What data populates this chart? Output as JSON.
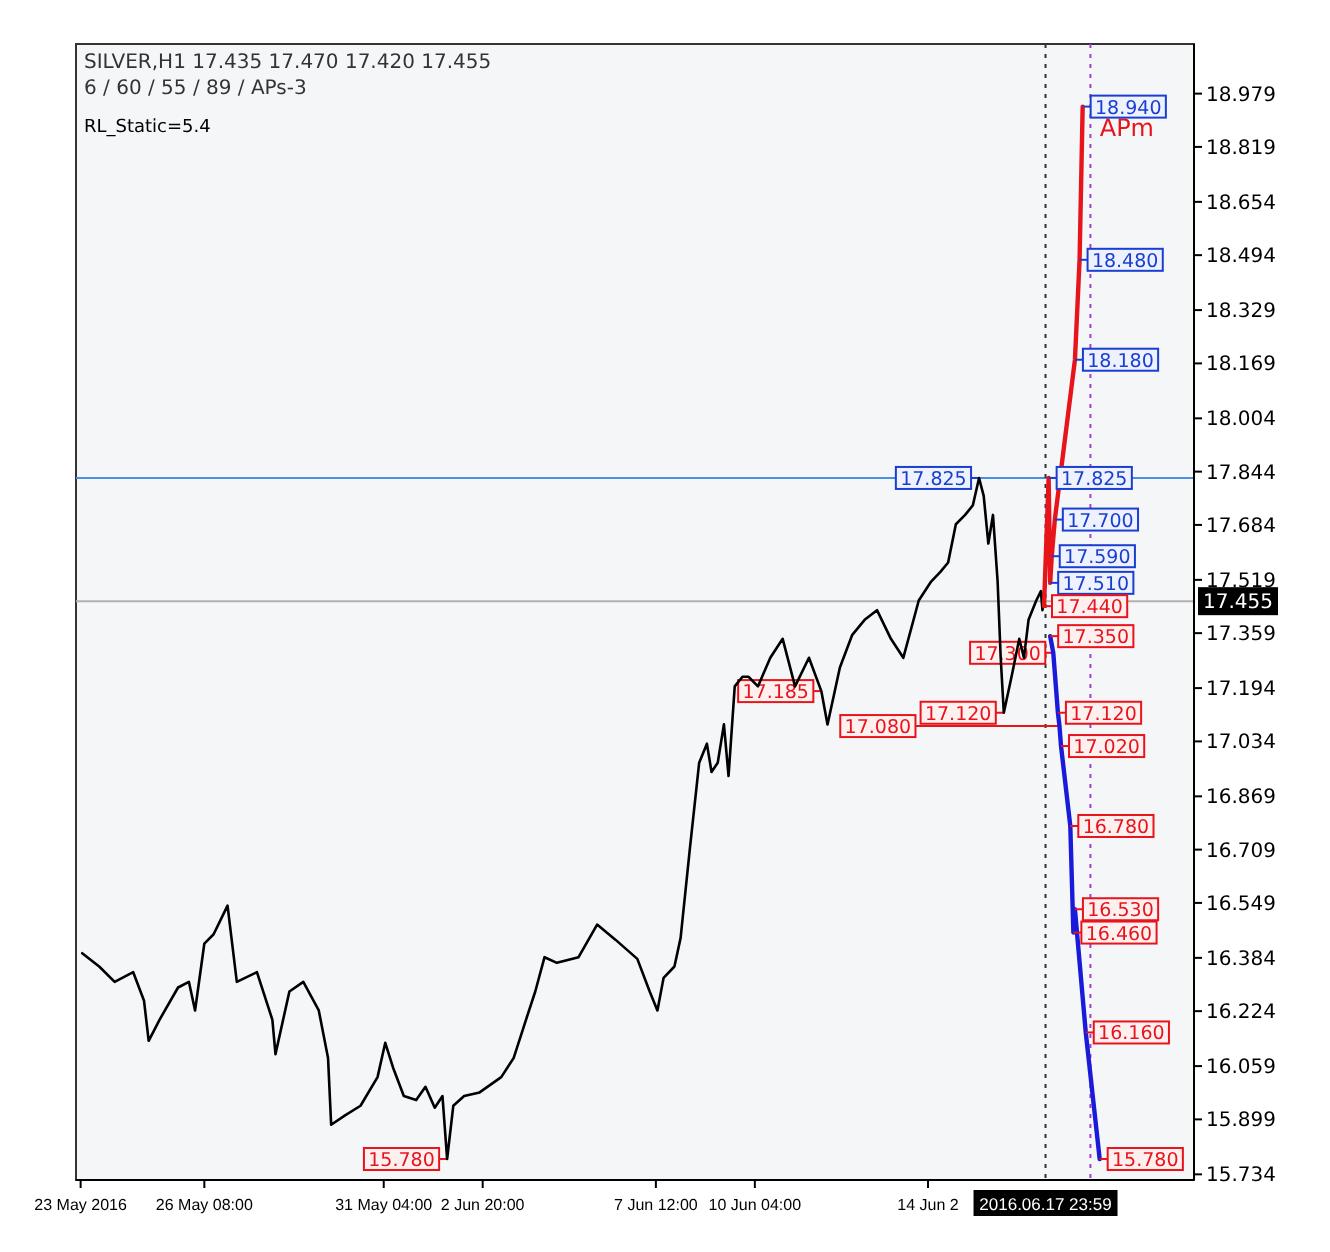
{
  "chart_data": {
    "type": "line",
    "title": "SILVER,H1  17.435 17.470 17.420 17.455",
    "subtitle": "6 / 60 / 55 / 89 / APs-3",
    "xlim": [
      "2016-05-22T21:00",
      "2016-06-22T00:00"
    ],
    "ylim": [
      15.717,
      19.128
    ],
    "xticks": [
      {
        "value": "2016-05-23T00:00",
        "label": "23 May 2016"
      },
      {
        "value": "2016-05-26T08:00",
        "label": "26 May 08:00"
      },
      {
        "value": "2016-05-31T04:00",
        "label": "31 May 04:00"
      },
      {
        "value": "2016-06-02T20:00",
        "label": "2 Jun 20:00"
      },
      {
        "value": "2016-06-07T12:00",
        "label": "7 Jun 12:00"
      },
      {
        "value": "2016-06-10T04:00",
        "label": "10 Jun 04:00"
      },
      {
        "value": "2016-06-14T20:00",
        "label": "14 Jun 2"
      }
    ],
    "yticks": [
      18.979,
      18.819,
      18.654,
      18.494,
      18.329,
      18.169,
      18.004,
      17.844,
      17.684,
      17.519,
      17.359,
      17.194,
      17.034,
      16.869,
      16.709,
      16.549,
      16.384,
      16.224,
      16.059,
      15.899,
      15.734
    ],
    "grid": false,
    "marker": "none",
    "line_style": "solid",
    "series": [
      {
        "color": "#000000",
        "x": [
          "2016-05-23T01:00",
          "2016-05-23T12:00",
          "2016-05-23T22:00",
          "2016-05-24T10:00",
          "2016-05-24T17:00",
          "2016-05-24T20:00",
          "2016-05-25T03:00",
          "2016-05-25T15:00",
          "2016-05-25T22:00",
          "2016-05-26T02:00",
          "2016-05-26T08:00",
          "2016-05-26T14:00",
          "2016-05-26T23:00",
          "2016-05-27T05:00",
          "2016-05-27T18:00",
          "2016-05-28T04:00",
          "2016-05-28T06:00",
          "2016-05-28T15:00",
          "2016-05-29T00:00",
          "2016-05-29T10:00",
          "2016-05-29T16:00",
          "2016-05-29T18:00",
          "2016-05-30T03:00",
          "2016-05-30T13:00",
          "2016-05-31T00:00",
          "2016-05-31T05:00",
          "2016-05-31T10:00",
          "2016-05-31T17:00",
          "2016-06-01T01:00",
          "2016-06-01T07:00",
          "2016-06-01T13:00",
          "2016-06-01T18:00",
          "2016-06-01T21:00",
          "2016-06-02T01:00",
          "2016-06-02T08:00",
          "2016-06-02T18:00",
          "2016-06-03T08:00",
          "2016-06-03T16:00",
          "2016-06-04T00:00",
          "2016-06-04T06:00",
          "2016-06-04T12:00",
          "2016-06-04T20:00",
          "2016-06-05T10:00",
          "2016-06-05T22:00",
          "2016-06-06T10:00",
          "2016-06-07T00:00",
          "2016-06-07T08:00",
          "2016-06-07T13:00",
          "2016-06-07T17:00",
          "2016-06-08T00:00",
          "2016-06-08T04:00",
          "2016-06-08T10:00",
          "2016-06-08T14:00",
          "2016-06-08T16:00",
          "2016-06-08T21:00",
          "2016-06-09T00:00",
          "2016-06-09T04:00",
          "2016-06-09T08:00",
          "2016-06-09T11:00",
          "2016-06-09T15:00",
          "2016-06-09T20:00",
          "2016-06-10T00:00",
          "2016-06-10T06:00",
          "2016-06-10T14:00",
          "2016-06-10T22:00",
          "2016-06-11T06:00",
          "2016-06-11T15:00",
          "2016-06-11T23:00",
          "2016-06-12T03:00",
          "2016-06-12T11:00",
          "2016-06-12T19:00",
          "2016-06-13T03:00",
          "2016-06-13T11:00",
          "2016-06-13T20:00",
          "2016-06-14T04:00",
          "2016-06-14T14:00",
          "2016-06-14T22:00",
          "2016-06-15T04:00",
          "2016-06-15T09:00",
          "2016-06-15T14:00",
          "2016-06-15T20:00",
          "2016-06-16T01:00",
          "2016-06-16T05:00",
          "2016-06-16T08:00",
          "2016-06-16T11:00",
          "2016-06-16T14:00",
          "2016-06-16T17:00",
          "2016-06-16T19:00",
          "2016-06-16T21:00",
          "2016-06-17T02:00",
          "2016-06-17T07:00",
          "2016-06-17T10:00",
          "2016-06-17T13:00",
          "2016-06-17T18:00",
          "2016-06-17T21:00",
          "2016-06-17T22:00",
          "2016-06-17T23:00"
        ],
        "values": [
          16.398,
          16.358,
          16.312,
          16.341,
          16.255,
          16.135,
          16.198,
          16.295,
          16.312,
          16.226,
          16.427,
          16.455,
          16.541,
          16.312,
          16.341,
          16.198,
          16.095,
          16.283,
          16.312,
          16.226,
          16.083,
          15.883,
          15.911,
          15.94,
          16.026,
          16.129,
          16.055,
          15.969,
          15.957,
          15.997,
          15.934,
          15.969,
          15.78,
          15.94,
          15.969,
          15.98,
          16.026,
          16.083,
          16.198,
          16.283,
          16.386,
          16.369,
          16.386,
          16.484,
          16.438,
          16.381,
          16.283,
          16.226,
          16.324,
          16.358,
          16.444,
          16.713,
          16.884,
          16.97,
          17.027,
          16.942,
          16.97,
          17.085,
          16.93,
          17.199,
          17.228,
          17.228,
          17.199,
          17.285,
          17.342,
          17.199,
          17.285,
          17.185,
          17.085,
          17.256,
          17.354,
          17.399,
          17.428,
          17.342,
          17.285,
          17.457,
          17.514,
          17.543,
          17.571,
          17.686,
          17.714,
          17.743,
          17.825,
          17.771,
          17.628,
          17.714,
          17.514,
          17.285,
          17.12,
          17.228,
          17.342,
          17.285,
          17.399,
          17.457,
          17.485,
          17.428,
          17.485
        ]
      },
      {
        "color": "#e8141c",
        "x": [
          "2016-06-17T23:00",
          "2016-06-18T02:00",
          "2016-06-18T03:00",
          "2016-06-18T04:00",
          "2016-06-18T06:00",
          "2016-06-18T19:00",
          "2016-06-18T22:00",
          "2016-06-19T00:00"
        ],
        "values": [
          17.44,
          17.825,
          17.51,
          17.59,
          17.7,
          18.18,
          18.48,
          18.94
        ]
      },
      {
        "color": "#1a1adb",
        "x": [
          "2016-06-18T03:00",
          "2016-06-18T05:00",
          "2016-06-18T08:00",
          "2016-06-18T09:00",
          "2016-06-18T10:00",
          "2016-06-18T16:00",
          "2016-06-18T18:00",
          "2016-06-18T19:00",
          "2016-06-19T02:00",
          "2016-06-19T11:00"
        ],
        "values": [
          17.35,
          17.3,
          17.12,
          17.08,
          17.02,
          16.78,
          16.46,
          16.53,
          16.16,
          15.78
        ]
      }
    ],
    "ref_lines": [
      {
        "axis": "y",
        "value": 17.455,
        "label": "17.455",
        "color": "#b0b0b0",
        "line_style": "solid"
      },
      {
        "axis": "y",
        "value": 17.825,
        "color": "#4a90e2",
        "line_style": "solid"
      },
      {
        "axis": "x",
        "value": "2016-06-17T23:59",
        "label": "2016.06.17 23:59",
        "color": "#333333",
        "line_style": "dotted"
      },
      {
        "axis": "x",
        "value": "2016-06-19T05:00",
        "color": "#a040d0",
        "line_style": "dotted"
      }
    ],
    "annotations": [
      "RL_Static=5.4",
      "APm",
      {
        "text": "18.940",
        "x": "2016-06-19T00:00",
        "y": 18.94
      },
      {
        "text": "18.480",
        "x": "2016-06-18T22:00",
        "y": 18.48
      },
      {
        "text": "18.180",
        "x": "2016-06-18T19:00",
        "y": 18.18
      },
      {
        "text": "17.825",
        "x": "2016-06-18T02:00",
        "y": 17.825
      },
      {
        "text": "17.825",
        "x": "2016-06-16T05:00",
        "y": 17.825
      },
      {
        "text": "17.700",
        "x": "2016-06-18T06:00",
        "y": 17.7
      },
      {
        "text": "17.590",
        "x": "2016-06-18T04:00",
        "y": 17.59
      },
      {
        "text": "17.510",
        "x": "2016-06-18T03:00",
        "y": 17.51
      },
      {
        "text": "17.440",
        "x": "2016-06-17T23:00",
        "y": 17.44
      },
      {
        "text": "17.350",
        "x": "2016-06-18T03:00",
        "y": 17.35
      },
      {
        "text": "17.300",
        "x": "2016-06-18T05:00",
        "y": 17.3
      },
      {
        "text": "17.120",
        "x": "2016-06-16T21:00",
        "y": 17.12
      },
      {
        "text": "17.120",
        "x": "2016-06-18T08:00",
        "y": 17.12
      },
      {
        "text": "17.080",
        "x": "2016-06-18T09:00",
        "y": 17.08
      },
      {
        "text": "17.020",
        "x": "2016-06-18T10:00",
        "y": 17.02
      },
      {
        "text": "16.780",
        "x": "2016-06-18T16:00",
        "y": 16.78
      },
      {
        "text": "16.530",
        "x": "2016-06-18T19:00",
        "y": 16.53
      },
      {
        "text": "16.460",
        "x": "2016-06-18T18:00",
        "y": 16.46
      },
      {
        "text": "16.160",
        "x": "2016-06-19T02:00",
        "y": 16.16
      },
      {
        "text": "15.780",
        "x": "2016-06-19T11:00",
        "y": 15.78
      },
      {
        "text": "15.780",
        "x": "2016-06-01T21:00",
        "y": 15.78
      },
      {
        "text": "17.185",
        "x": "2016-06-11T23:00",
        "y": 17.185
      }
    ]
  }
}
